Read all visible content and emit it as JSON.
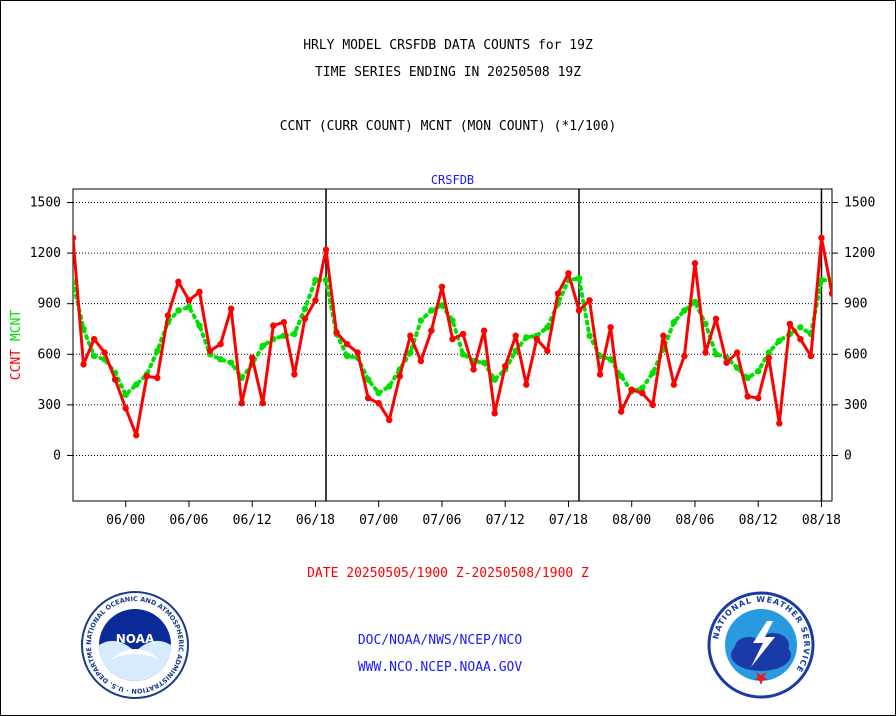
{
  "header": {
    "title_line1": "HRLY MODEL CRSFDB DATA COUNTS for 19Z",
    "title_line2": "TIME SERIES ENDING IN 20250508 19Z",
    "subtitle": "CCNT (CURR COUNT) MCNT (MON COUNT) (*1/100)"
  },
  "chart_data": {
    "type": "line",
    "title": "CRSFDB",
    "ylabel_left": [
      "CCNT",
      "MCNT"
    ],
    "xlabel": "DATE 20250505/1900 Z-20250508/1900 Z",
    "ylim": [
      -270,
      1580
    ],
    "yticks": [
      0,
      300,
      600,
      900,
      1200,
      1500
    ],
    "xlim": [
      19,
      91
    ],
    "x_ticks": [
      {
        "x": 24,
        "label": "06/00"
      },
      {
        "x": 30,
        "label": "06/06"
      },
      {
        "x": 36,
        "label": "06/12"
      },
      {
        "x": 42,
        "label": "06/18"
      },
      {
        "x": 48,
        "label": "07/00"
      },
      {
        "x": 54,
        "label": "07/06"
      },
      {
        "x": 60,
        "label": "07/12"
      },
      {
        "x": 66,
        "label": "07/18"
      },
      {
        "x": 72,
        "label": "08/00"
      },
      {
        "x": 78,
        "label": "08/06"
      },
      {
        "x": 84,
        "label": "08/12"
      },
      {
        "x": 90,
        "label": "08/18"
      }
    ],
    "day_boundaries": [
      43,
      67,
      90
    ],
    "grid": true,
    "colors": {
      "ccnt": "#ff0000",
      "mcnt": "#00e000",
      "title": "#1a1aff"
    },
    "series": [
      {
        "name": "CCNT",
        "x": [
          19,
          20,
          21,
          22,
          23,
          24,
          25,
          26,
          27,
          28,
          29,
          30,
          31,
          32,
          33,
          34,
          35,
          36,
          37,
          38,
          39,
          40,
          41,
          42,
          43,
          44,
          45,
          46,
          47,
          48,
          49,
          50,
          51,
          52,
          53,
          54,
          55,
          56,
          57,
          58,
          59,
          60,
          61,
          62,
          63,
          64,
          65,
          66,
          67,
          68,
          69,
          70,
          71,
          72,
          73,
          74,
          75,
          76,
          77,
          78,
          79,
          80,
          81,
          82,
          83,
          84,
          85,
          86,
          87,
          88,
          89,
          90,
          91
        ],
        "values": [
          1290,
          540,
          690,
          610,
          450,
          280,
          120,
          470,
          460,
          830,
          1030,
          920,
          970,
          620,
          660,
          870,
          310,
          580,
          310,
          770,
          790,
          480,
          810,
          920,
          1220,
          730,
          660,
          610,
          340,
          310,
          210,
          470,
          710,
          560,
          740,
          1000,
          690,
          720,
          510,
          740,
          250,
          530,
          710,
          420,
          690,
          620,
          960,
          1080,
          860,
          920,
          480,
          760,
          260,
          390,
          370,
          300,
          710,
          420,
          590,
          1140,
          610,
          810,
          550,
          610,
          350,
          340,
          580,
          190,
          780,
          690,
          590,
          1290,
          960
        ]
      },
      {
        "name": "MCNT",
        "x": [
          19,
          20,
          21,
          22,
          23,
          24,
          25,
          26,
          27,
          28,
          29,
          30,
          31,
          32,
          33,
          34,
          35,
          36,
          37,
          38,
          39,
          40,
          41,
          42,
          43,
          44,
          45,
          46,
          47,
          48,
          49,
          50,
          51,
          52,
          53,
          54,
          55,
          56,
          57,
          58,
          59,
          60,
          61,
          62,
          63,
          64,
          65,
          66,
          67,
          68,
          69,
          70,
          71,
          72,
          73,
          74,
          75,
          76,
          77,
          78,
          79,
          80,
          81,
          82,
          83,
          84,
          85,
          86,
          87,
          88,
          89,
          90,
          91
        ],
        "values": [
          1030,
          750,
          590,
          570,
          490,
          360,
          420,
          480,
          620,
          790,
          860,
          880,
          770,
          600,
          570,
          550,
          460,
          540,
          650,
          690,
          710,
          720,
          870,
          1040,
          1040,
          720,
          590,
          580,
          450,
          370,
          410,
          510,
          610,
          800,
          860,
          890,
          800,
          600,
          560,
          550,
          450,
          510,
          620,
          700,
          710,
          760,
          900,
          1040,
          1050,
          710,
          590,
          570,
          470,
          380,
          400,
          490,
          630,
          790,
          860,
          910,
          780,
          600,
          580,
          520,
          460,
          500,
          610,
          680,
          720,
          760,
          720,
          1040,
          1040
        ]
      }
    ]
  },
  "footer": {
    "date_range": "DATE 20250505/1900 Z-20250508/1900 Z",
    "org_line": "DOC/NOAA/NWS/NCEP/NCO",
    "url_line": "WWW.NCO.NCEP.NOAA.GOV",
    "noaa_logo": {
      "text": "NOAA",
      "ring_text": "NATIONAL OCEANIC AND ATMOSPHERIC ADMINISTRATION · U.S. DEPARTMENT OF COMMERCE"
    },
    "nws_logo": {
      "ring_text": "NATIONAL WEATHER SERVICE"
    }
  }
}
